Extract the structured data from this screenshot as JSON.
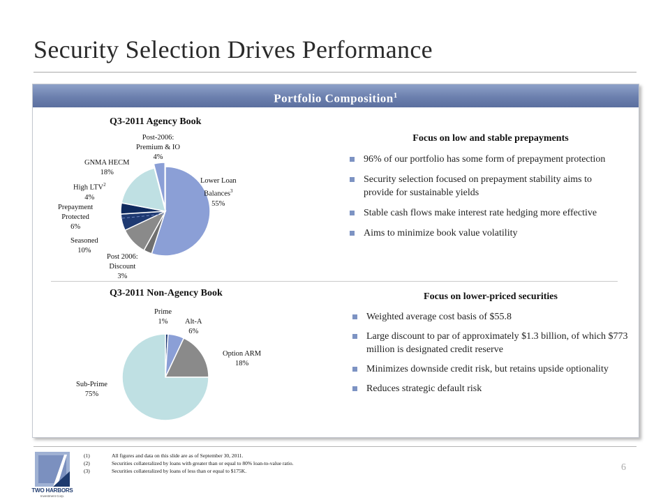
{
  "title": "Security Selection Drives Performance",
  "panel": {
    "header": "Portfolio Composition",
    "header_sup": "1"
  },
  "agency": {
    "chart_title": "Q3-2011 Agency Book",
    "focus_title": "Focus on low and stable prepayments",
    "bullets": [
      "96% of our portfolio has some form of prepayment protection",
      "Security selection focused on prepayment stability aims to provide for sustainable yields",
      "Stable cash flows make interest rate hedging more effective",
      "Aims to minimize book value volatility"
    ]
  },
  "non_agency": {
    "chart_title": "Q3-2011 Non-Agency Book",
    "focus_title": "Focus on lower-priced securities",
    "bullets": [
      "Weighted average cost basis of $55.8",
      "Large discount to par of approximately $1.3 billion, of which $773 million is designated credit reserve",
      "Minimizes downside credit risk, but retains upside optionality",
      "Reduces strategic default risk"
    ]
  },
  "chart_data": [
    {
      "type": "pie",
      "title": "Q3-2011 Agency Book",
      "slices": [
        {
          "name": "Lower Loan Balances",
          "sup": "3",
          "value": 55,
          "label": "55%",
          "color": "#8b9fd6"
        },
        {
          "name": "Post 2006: Discount",
          "sup": "",
          "value": 3,
          "label": "3%",
          "color": "#6f6f6f"
        },
        {
          "name": "Seasoned",
          "sup": "",
          "value": 10,
          "label": "10%",
          "color": "#8a8a8a"
        },
        {
          "name": "Prepayment Protected",
          "sup": "",
          "value": 6,
          "label": "6%",
          "color": "#1f3a72"
        },
        {
          "name": "High LTV",
          "sup": "2",
          "value": 4,
          "label": "4%",
          "color": "#0f2a5e"
        },
        {
          "name": "GNMA HECM",
          "sup": "",
          "value": 18,
          "label": "18%",
          "color": "#bfe0e3"
        },
        {
          "name": "Post-2006: Premium & IO",
          "sup": "",
          "value": 4,
          "label": "4%",
          "color": "#8b9fd6"
        }
      ]
    },
    {
      "type": "pie",
      "title": "Q3-2011 Non-Agency Book",
      "slices": [
        {
          "name": "Prime",
          "value": 1,
          "label": "1%",
          "color": "#1f3a72"
        },
        {
          "name": "Alt-A",
          "value": 6,
          "label": "6%",
          "color": "#8b9fd6"
        },
        {
          "name": "Option ARM",
          "value": 18,
          "label": "18%",
          "color": "#8a8a8a"
        },
        {
          "name": "Sub-Prime",
          "value": 75,
          "label": "75%",
          "color": "#bfe0e3"
        }
      ]
    }
  ],
  "pie_labels": {
    "lower_loan": {
      "line1": "Lower Loan",
      "line2": "Balances",
      "sup": "3",
      "value": "55%"
    },
    "post2006_discount": {
      "line1": "Post 2006:",
      "line2": "Discount",
      "value": "3%"
    },
    "seasoned": {
      "line1": "Seasoned",
      "value": "10%"
    },
    "prepay_protected": {
      "line1": "Prepayment",
      "line2": "Protected",
      "value": "6%"
    },
    "high_ltv": {
      "line1": "High LTV",
      "sup": "2",
      "value": "4%"
    },
    "gnma_hecm": {
      "line1": "GNMA HECM",
      "value": "18%"
    },
    "post2006_premium": {
      "line1": "Post-2006:",
      "line2": "Premium & IO",
      "value": "4%"
    },
    "prime": {
      "line1": "Prime",
      "value": "1%"
    },
    "alt_a": {
      "line1": "Alt-A",
      "value": "6%"
    },
    "option_arm": {
      "line1": "Option ARM",
      "value": "18%"
    },
    "sub_prime": {
      "line1": "Sub-Prime",
      "value": "75%"
    }
  },
  "footnotes": [
    {
      "num": "(1)",
      "text": "All figures and data on this slide are as of September 30, 2011."
    },
    {
      "num": "(2)",
      "text": "Securities collateralized by loans with greater than or equal to 80% loan-to-value ratio."
    },
    {
      "num": "(3)",
      "text": "Securities collateralized by loans of less than or equal to $175K."
    }
  ],
  "page_number": "6",
  "logo": {
    "name": "TWO HARBORS",
    "sub": "Investment Corp."
  }
}
